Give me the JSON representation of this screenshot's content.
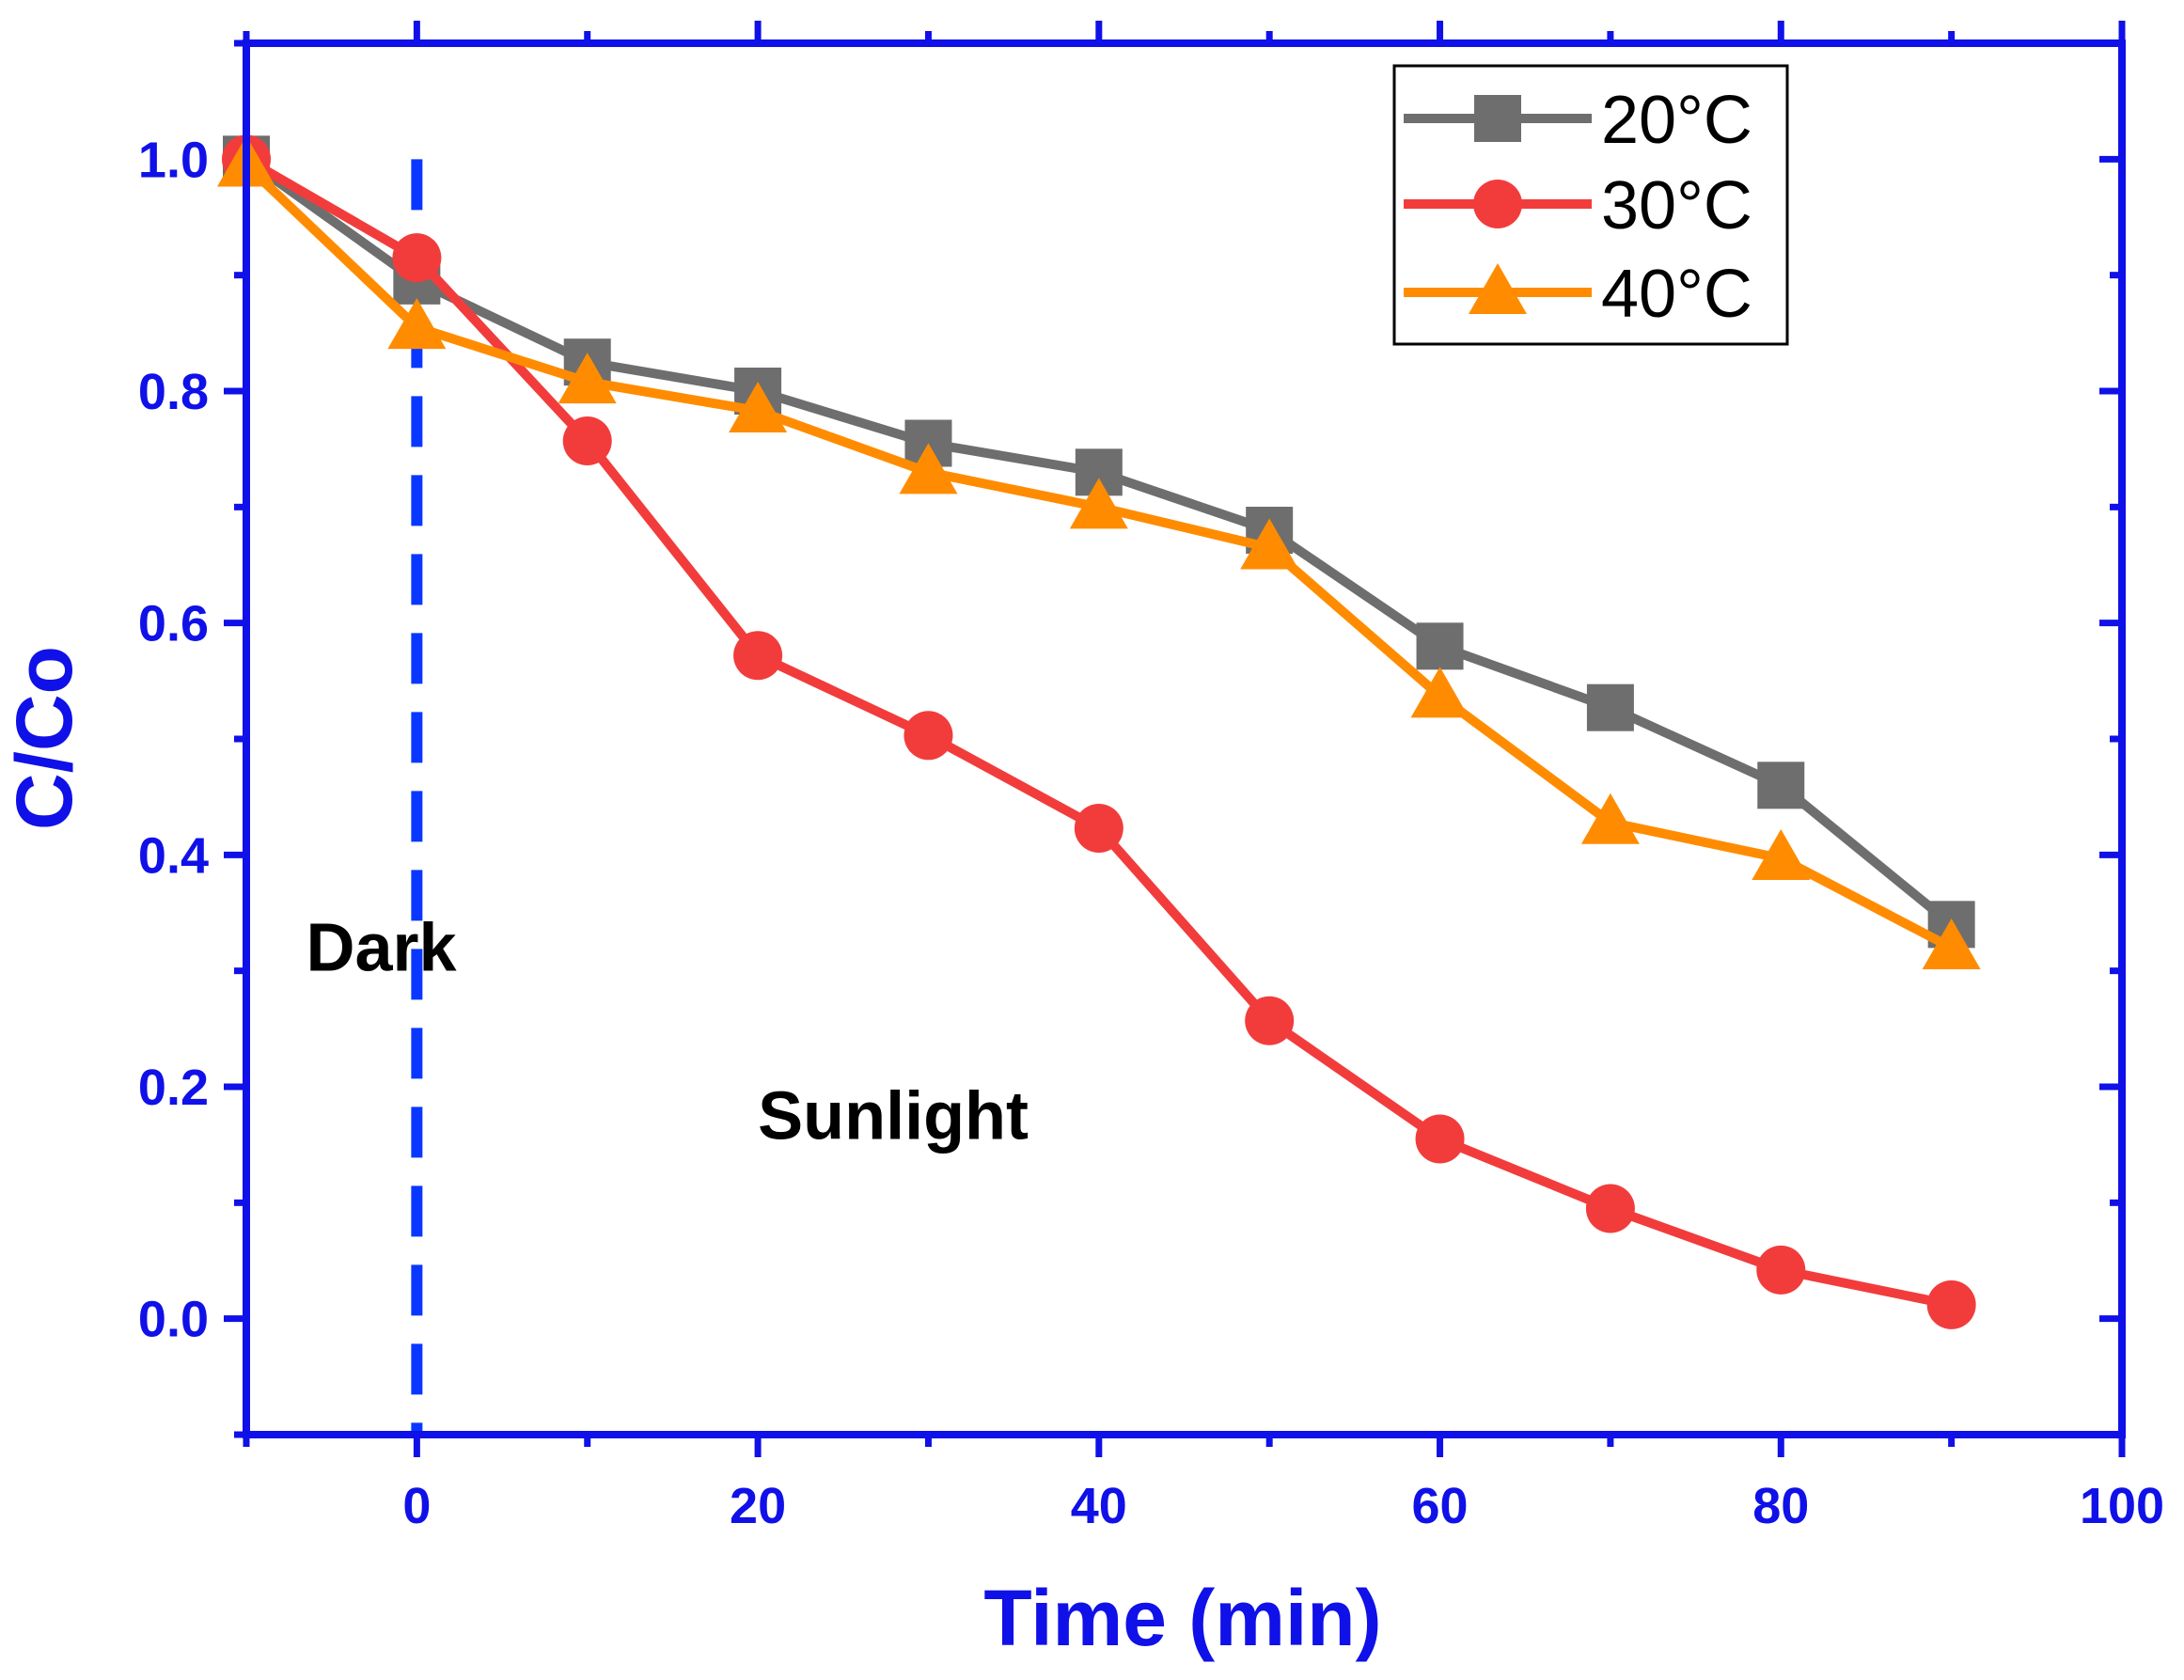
{
  "chart_data": {
    "type": "line",
    "title": "",
    "xlabel": "Time (min)",
    "ylabel": "C/Co",
    "xlim": [
      -10,
      100
    ],
    "ylim": [
      -0.1,
      1.1
    ],
    "xticks": [
      0,
      20,
      40,
      60,
      80,
      100
    ],
    "yticks": [
      0.0,
      0.2,
      0.4,
      0.6,
      0.8,
      1.0
    ],
    "xtick_labels": [
      "0",
      "20",
      "40",
      "60",
      "80",
      "100"
    ],
    "ytick_labels": [
      "0.0",
      "0.2",
      "0.4",
      "0.6",
      "0.8",
      "1.0"
    ],
    "x": [
      -10,
      0,
      10,
      20,
      30,
      40,
      50,
      60,
      70,
      80,
      90
    ],
    "series": [
      {
        "name": "20°C",
        "color": "#6e6e6e",
        "marker": "square",
        "values": [
          1.0,
          0.895,
          0.825,
          0.8,
          0.755,
          0.73,
          0.68,
          0.58,
          0.527,
          0.46,
          0.34
        ]
      },
      {
        "name": "30°C",
        "color": "#f23c3c",
        "marker": "circle",
        "values": [
          1.0,
          0.915,
          0.757,
          0.572,
          0.503,
          0.423,
          0.257,
          0.155,
          0.095,
          0.042,
          0.012
        ]
      },
      {
        "name": "40°C",
        "color": "#ff8c00",
        "marker": "triangle",
        "values": [
          0.995,
          0.855,
          0.808,
          0.783,
          0.73,
          0.7,
          0.665,
          0.537,
          0.428,
          0.397,
          0.32
        ]
      }
    ],
    "vline": {
      "x": 0,
      "color": "#0a37ff",
      "style": "dashed"
    },
    "annotations": [
      {
        "text": "Dark",
        "x": -6.5,
        "y": 0.3
      },
      {
        "text": "Sunlight",
        "x": 20,
        "y": 0.155
      }
    ],
    "legend": {
      "position": "top-right"
    },
    "axis_color": "#1010e8"
  }
}
